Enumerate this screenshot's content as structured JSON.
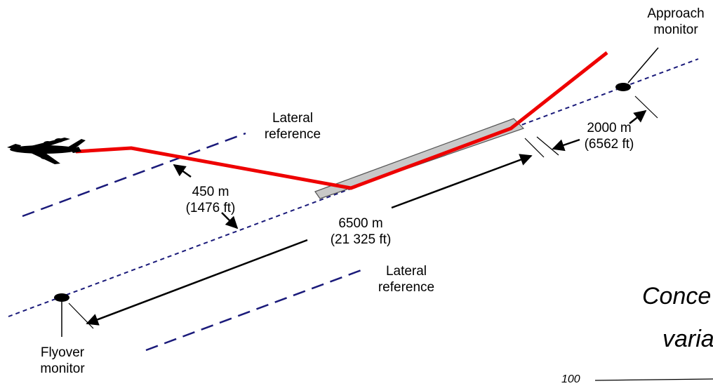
{
  "labels": {
    "approach_monitor": [
      "Approach",
      "monitor"
    ],
    "flyover_monitor": [
      "Flyover",
      "monitor"
    ],
    "lateral_reference_upper": [
      "Lateral",
      "reference"
    ],
    "lateral_reference_lower": [
      "Lateral",
      "reference"
    ],
    "lateral_distance": [
      "450 m",
      "(1476 ft)"
    ],
    "runway_distance": [
      "6500 m",
      "(21 325 ft)"
    ],
    "approach_distance": [
      "2000 m",
      "(6562 ft)"
    ]
  },
  "cut_off_text": {
    "line1": "Conce",
    "line2": "varia",
    "axis_tick": "100"
  },
  "colors": {
    "flight_path": "#ee0000",
    "reference_line": "#1a1a7a",
    "runway_fill": "#c8c8c8",
    "runway_stroke": "#555555",
    "arrow": "#000000"
  }
}
